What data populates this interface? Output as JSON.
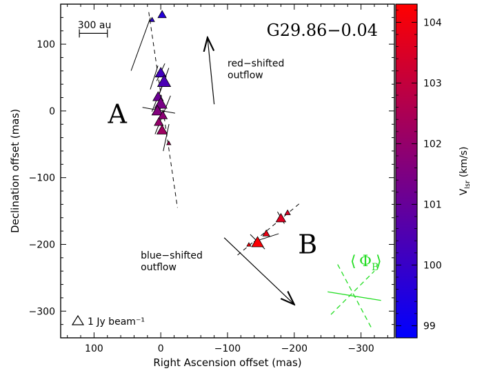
{
  "chart_data": {
    "type": "scatter",
    "title": "G29.86−0.04",
    "xlabel": "Right Ascension offset (mas)",
    "ylabel": "Declination offset (mas)",
    "xlim": [
      150,
      -350
    ],
    "ylim": [
      -340,
      160
    ],
    "x_ticks": [
      100,
      0,
      -100,
      -200,
      -300
    ],
    "x_tick_labels": [
      "100",
      "0",
      "−100",
      "−200",
      "−300"
    ],
    "y_ticks": [
      100,
      0,
      -100,
      -200,
      -300
    ],
    "y_tick_labels": [
      "100",
      "0",
      "−100",
      "−200",
      "−300"
    ],
    "colorbar": {
      "label": "Vlsr (km/s)",
      "label_main": "V",
      "label_sub": "lsr",
      "label_unit": " (km/s)",
      "range": [
        98.8,
        104.3
      ],
      "ticks": [
        99,
        100,
        101,
        102,
        103,
        104
      ],
      "tick_labels": [
        "99",
        "100",
        "101",
        "102",
        "103",
        "104"
      ],
      "color_low": "#0000ff",
      "color_high": "#ff0000"
    },
    "scale_bar": {
      "label": "300 au",
      "x_from": 122,
      "x_to": 80,
      "y": 110
    },
    "legend_triangle_label": "1 Jy beam⁻¹",
    "region_labels": [
      {
        "text": "A",
        "x": 65,
        "y": -5
      },
      {
        "text": "B",
        "x": -220,
        "y": -200
      }
    ],
    "annotations": [
      {
        "text_lines": [
          "red−shifted",
          "outflow"
        ],
        "x": -100,
        "y": 48
      },
      {
        "text_lines": [
          "blue−shifted",
          "outflow"
        ],
        "x": 30,
        "y": -240
      }
    ],
    "outflow_arrows": [
      {
        "name": "red-shifted",
        "from": [
          -80,
          10
        ],
        "to": [
          -70,
          110
        ]
      },
      {
        "name": "blue-shifted",
        "from": [
          -95,
          -190
        ],
        "to": [
          -200,
          -290
        ]
      }
    ],
    "dashed_lines": [
      {
        "from": [
          18,
          148
        ],
        "to": [
          -25,
          -145
        ]
      },
      {
        "from": [
          -115,
          -216
        ],
        "to": [
          -210,
          -137
        ]
      }
    ],
    "phi_b": {
      "label": "Φ",
      "subscript": "B",
      "center": [
        -290,
        -277
      ],
      "solid_line": {
        "from": [
          -250,
          -271
        ],
        "to": [
          -330,
          -284
        ]
      },
      "dashed_lines": [
        {
          "from": [
            -265,
            -230
          ],
          "to": [
            -315,
            -324
          ]
        },
        {
          "from": [
            -255,
            -305
          ],
          "to": [
            -320,
            -240
          ]
        }
      ]
    },
    "series": [
      {
        "name": "",
        "points": [
          {
            "x": -2,
            "y": 145,
            "size": 12,
            "v": 99.6
          },
          {
            "x": 13,
            "y": 137,
            "size": 7,
            "v": 99.8
          },
          {
            "x": 0,
            "y": 58,
            "size": 16,
            "v": 100.2
          },
          {
            "x": -5,
            "y": 45,
            "size": 19,
            "v": 100.4
          },
          {
            "x": 4,
            "y": 22,
            "size": 15,
            "v": 101.1
          },
          {
            "x": 0,
            "y": 12,
            "size": 18,
            "v": 101.4
          },
          {
            "x": 5,
            "y": 1,
            "size": 16,
            "v": 101.6
          },
          {
            "x": -3,
            "y": -6,
            "size": 13,
            "v": 101.8
          },
          {
            "x": 3,
            "y": -16,
            "size": 13,
            "v": 102.0
          },
          {
            "x": -2,
            "y": -28,
            "size": 15,
            "v": 102.2
          },
          {
            "x": -12,
            "y": -48,
            "size": 6,
            "v": 102.5
          },
          {
            "x": -145,
            "y": -196,
            "size": 17,
            "v": 104.2
          },
          {
            "x": -132,
            "y": -200,
            "size": 6,
            "v": 104.1
          },
          {
            "x": -158,
            "y": -183,
            "size": 10,
            "v": 103.9
          },
          {
            "x": -180,
            "y": -160,
            "size": 14,
            "v": 103.6
          },
          {
            "x": -190,
            "y": -152,
            "size": 8,
            "v": 103.5
          }
        ]
      }
    ],
    "vectors": [
      {
        "x": -2,
        "y": 145,
        "angle_deg": 0,
        "length": 0
      },
      {
        "x": 0,
        "y": 58,
        "angle_deg": 115,
        "length": 28
      },
      {
        "x": -5,
        "y": 45,
        "angle_deg": 110,
        "length": 40
      },
      {
        "x": 4,
        "y": 22,
        "angle_deg": 112,
        "length": 48
      },
      {
        "x": 0,
        "y": 12,
        "angle_deg": 95,
        "length": 22
      },
      {
        "x": 3,
        "y": 1,
        "angle_deg": 10,
        "length": 48
      },
      {
        "x": 30,
        "y": 100,
        "angle_deg": 110,
        "length": 82
      },
      {
        "x": 10,
        "y": 50,
        "angle_deg": 108,
        "length": 36
      },
      {
        "x": -3,
        "y": -6,
        "angle_deg": 112,
        "length": 60
      },
      {
        "x": -8,
        "y": -40,
        "angle_deg": 102,
        "length": 40
      },
      {
        "x": -145,
        "y": -196,
        "angle_deg": 45,
        "length": 30
      },
      {
        "x": -158,
        "y": -190,
        "angle_deg": -18,
        "length": 38
      },
      {
        "x": -180,
        "y": -160,
        "angle_deg": 60,
        "length": 20
      }
    ]
  }
}
